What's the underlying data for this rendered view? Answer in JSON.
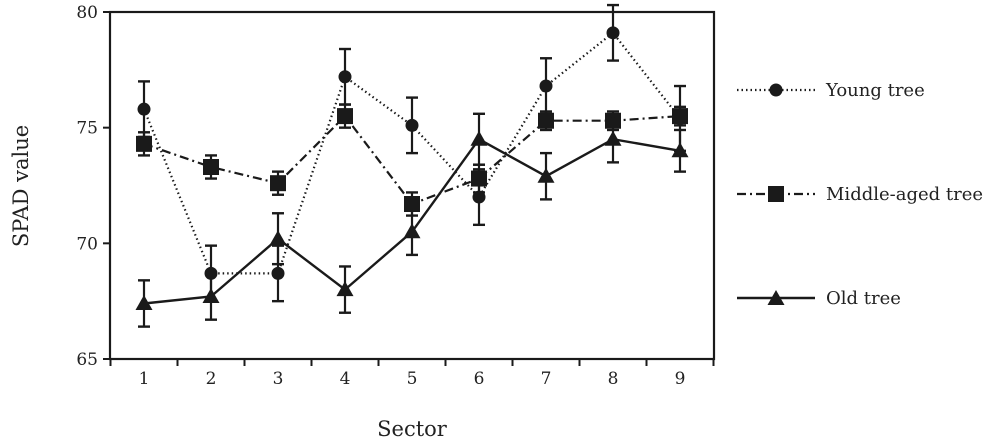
{
  "chart_data": {
    "type": "line",
    "xlabel": "Sector",
    "ylabel": "SPAD value",
    "categories": [
      "1",
      "2",
      "3",
      "4",
      "5",
      "6",
      "7",
      "8",
      "9"
    ],
    "ylim": [
      65,
      80
    ],
    "yticks": [
      "65",
      "70",
      "75",
      "80"
    ],
    "grid": false,
    "legend_position": "right",
    "series": [
      {
        "name": "Young tree",
        "marker": "circle",
        "line_style": "dotted",
        "values": [
          75.8,
          68.7,
          68.7,
          77.2,
          75.1,
          72.0,
          76.8,
          79.1,
          75.4
        ],
        "errors": [
          1.2,
          1.2,
          1.2,
          1.2,
          1.2,
          1.2,
          1.2,
          1.2,
          1.4
        ]
      },
      {
        "name": "Middle-aged tree",
        "marker": "square",
        "line_style": "dash-dot",
        "values": [
          74.3,
          73.3,
          72.6,
          75.5,
          71.7,
          72.8,
          75.3,
          75.3,
          75.5
        ],
        "errors": [
          0.5,
          0.5,
          0.5,
          0.5,
          0.5,
          0.6,
          0.4,
          0.4,
          0.4
        ]
      },
      {
        "name": "Old tree",
        "marker": "triangle",
        "line_style": "solid",
        "values": [
          67.4,
          67.7,
          70.2,
          68.0,
          70.5,
          74.5,
          72.9,
          74.5,
          74.0
        ],
        "errors": [
          1.0,
          1.0,
          1.1,
          1.0,
          1.0,
          1.1,
          1.0,
          1.0,
          0.9
        ]
      }
    ],
    "color": "#1a1a1a"
  }
}
